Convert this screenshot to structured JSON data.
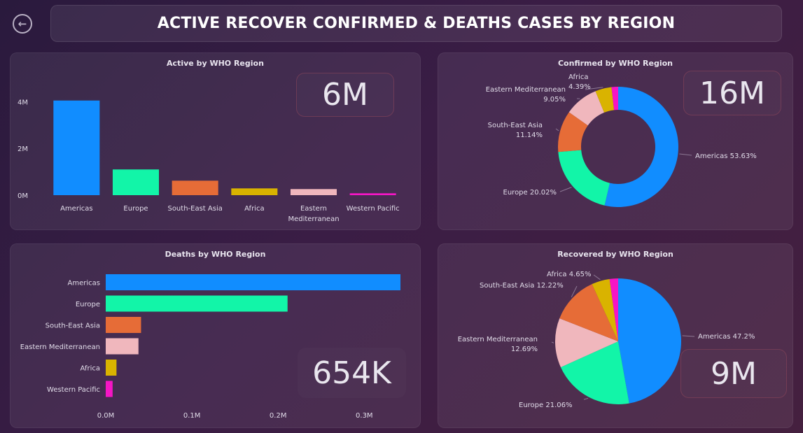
{
  "header": {
    "title": "ACTIVE RECOVER CONFIRMED & DEATHS CASES BY REGION",
    "back_icon": "arrow-left-circle-icon"
  },
  "colors": {
    "Americas": "#118dff",
    "Europe": "#12f5a8",
    "South-East Asia": "#e66c37",
    "Africa": "#d9b300",
    "Eastern Mediterranean": "#f0b7bd",
    "Western Pacific": "#f516c5"
  },
  "panels": {
    "active": {
      "title": "Active by WHO Region",
      "kpi": "6M"
    },
    "confirmed": {
      "title": "Confirmed by WHO Region",
      "kpi": "16M"
    },
    "deaths": {
      "title": "Deaths by WHO Region",
      "kpi": "654K"
    },
    "recovered": {
      "title": "Recovered by WHO Region",
      "kpi": "9M"
    }
  },
  "chart_data": [
    {
      "id": "active",
      "type": "bar",
      "title": "Active by WHO Region",
      "categories": [
        "Americas",
        "Europe",
        "South-East Asia",
        "Africa",
        "Eastern Mediterranean",
        "Western Pacific"
      ],
      "category_lines": [
        [
          "Americas"
        ],
        [
          "Europe"
        ],
        [
          "South-East Asia"
        ],
        [
          "Africa"
        ],
        [
          "Eastern",
          "Mediterranean"
        ],
        [
          "Western Pacific"
        ]
      ],
      "values": [
        4050000,
        1100000,
        620000,
        290000,
        260000,
        80000
      ],
      "yticks": [
        0,
        2000000,
        4000000
      ],
      "ytick_labels": [
        "0M",
        "2M",
        "4M"
      ],
      "ylim": [
        0,
        4400000
      ],
      "grid": false
    },
    {
      "id": "confirmed",
      "type": "pie",
      "donut": true,
      "title": "Confirmed by WHO Region",
      "categories": [
        "Americas",
        "Europe",
        "South-East Asia",
        "Eastern Mediterranean",
        "Africa",
        "Western Pacific"
      ],
      "values": [
        53.63,
        20.02,
        11.14,
        9.05,
        4.39,
        1.77
      ],
      "labels": [
        {
          "category": "Americas",
          "lines": [
            "Americas 53.63%"
          ]
        },
        {
          "category": "Europe",
          "lines": [
            "Europe 20.02%"
          ]
        },
        {
          "category": "South-East Asia",
          "lines": [
            "South-East Asia",
            "11.14%"
          ]
        },
        {
          "category": "Eastern Mediterranean",
          "lines": [
            "Eastern Mediterranean",
            "9.05%"
          ]
        },
        {
          "category": "Africa",
          "lines": [
            "Africa",
            "4.39%"
          ]
        }
      ]
    },
    {
      "id": "deaths",
      "type": "bar",
      "orientation": "horizontal",
      "title": "Deaths by WHO Region",
      "categories": [
        "Americas",
        "Europe",
        "South-East Asia",
        "Eastern Mediterranean",
        "Africa",
        "Western Pacific"
      ],
      "values": [
        342000,
        211000,
        41000,
        38000,
        12500,
        8000
      ],
      "xticks": [
        0,
        100000,
        200000,
        300000
      ],
      "xtick_labels": [
        "0.0M",
        "0.1M",
        "0.2M",
        "0.3M"
      ],
      "xlim": [
        0,
        342000
      ],
      "grid": false
    },
    {
      "id": "recovered",
      "type": "pie",
      "donut": false,
      "title": "Recovered by WHO Region",
      "categories": [
        "Americas",
        "Europe",
        "Eastern Mediterranean",
        "South-East Asia",
        "Africa",
        "Western Pacific"
      ],
      "values": [
        47.2,
        21.06,
        12.69,
        12.22,
        4.65,
        2.18
      ],
      "labels": [
        {
          "category": "Americas",
          "lines": [
            "Americas 47.2%"
          ]
        },
        {
          "category": "Europe",
          "lines": [
            "Europe 21.06%"
          ]
        },
        {
          "category": "Eastern Mediterranean",
          "lines": [
            "Eastern Mediterranean",
            "12.69%"
          ]
        },
        {
          "category": "South-East Asia",
          "lines": [
            "South-East Asia 12.22%"
          ]
        },
        {
          "category": "Africa",
          "lines": [
            "Africa 4.65%"
          ]
        }
      ]
    }
  ]
}
